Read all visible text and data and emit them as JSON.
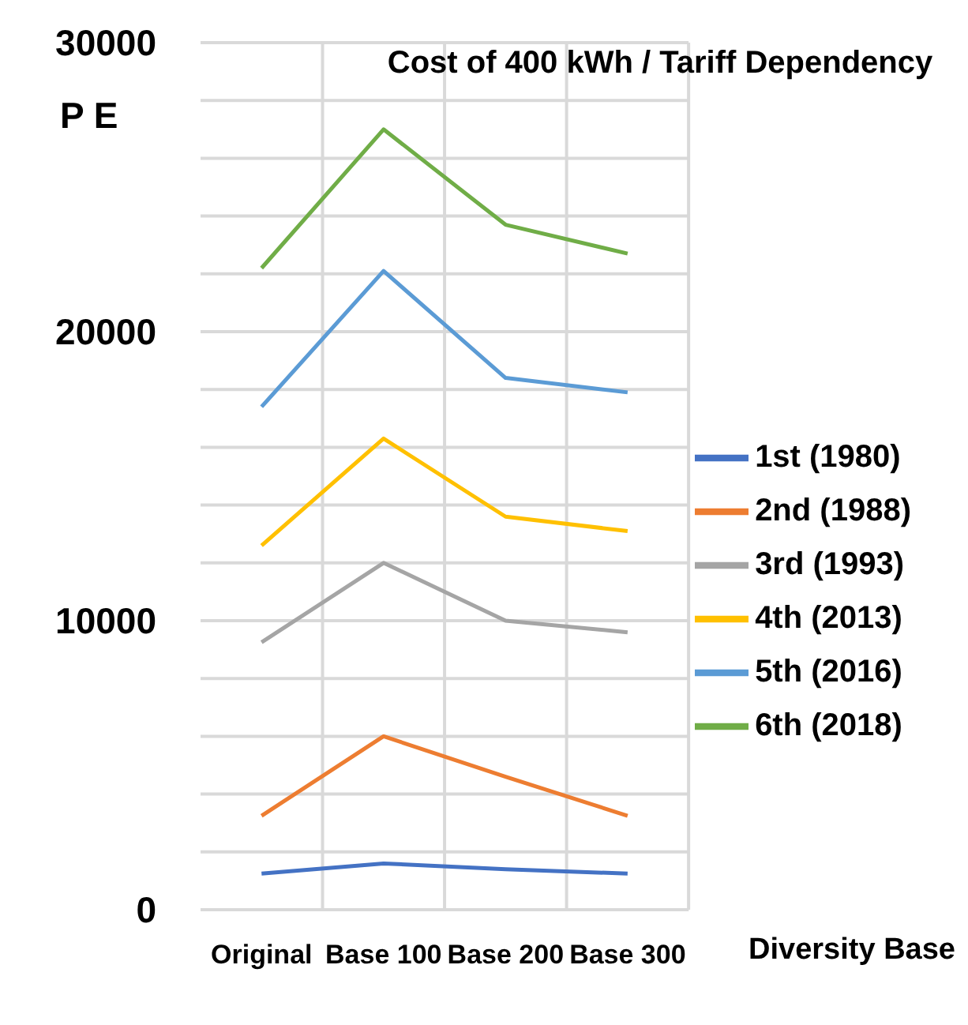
{
  "chart_data": {
    "type": "line",
    "title": "Cost of 400 kWh / Tariff Dependency",
    "xlabel": "Diversity Base",
    "ylabel": "P E",
    "categories": [
      "Original",
      "Base 100",
      "Base 200",
      "Base 300"
    ],
    "series": [
      {
        "name": "1st (1980)",
        "color": "#4472c4",
        "values": [
          1250,
          1600,
          1400,
          1250
        ]
      },
      {
        "name": "2nd (1988)",
        "color": "#ed7d31",
        "values": [
          3250,
          6000,
          4600,
          3250
        ]
      },
      {
        "name": "3rd (1993)",
        "color": "#a5a5a5",
        "values": [
          9250,
          12000,
          10000,
          9600
        ]
      },
      {
        "name": "4th (2013)",
        "color": "#ffc000",
        "values": [
          12600,
          16300,
          13600,
          13100
        ]
      },
      {
        "name": "5th (2016)",
        "color": "#5b9bd5",
        "values": [
          17400,
          22100,
          18400,
          17900
        ]
      },
      {
        "name": "6th (2018)",
        "color": "#70ad47",
        "values": [
          22200,
          27000,
          23700,
          22700
        ]
      }
    ],
    "ylim": [
      0,
      30000
    ],
    "yticks": [
      0,
      {
        "value": 2000,
        "label": null
      },
      {
        "value": 4000,
        "label": null
      },
      {
        "value": 6000,
        "label": null
      },
      {
        "value": 8000,
        "label": null
      },
      10000,
      {
        "value": 12000,
        "label": null
      },
      {
        "value": 14000,
        "label": null
      },
      {
        "value": 16000,
        "label": null
      },
      {
        "value": 18000,
        "label": null
      },
      20000,
      {
        "value": 22000,
        "label": null
      },
      {
        "value": 24000,
        "label": null
      },
      {
        "value": 26000,
        "label": null
      },
      {
        "value": 28000,
        "label": null
      },
      30000
    ],
    "grid": true,
    "legend": "right",
    "marker": "none",
    "line_style": "solid"
  }
}
